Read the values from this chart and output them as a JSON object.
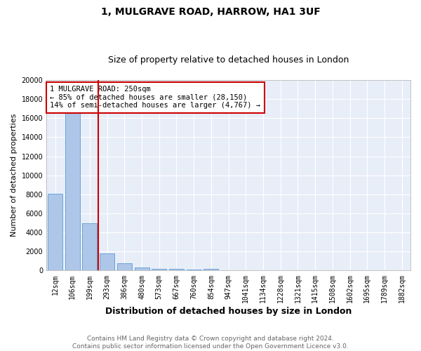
{
  "title1": "1, MULGRAVE ROAD, HARROW, HA1 3UF",
  "title2": "Size of property relative to detached houses in London",
  "xlabel": "Distribution of detached houses by size in London",
  "ylabel": "Number of detached properties",
  "categories": [
    "12sqm",
    "106sqm",
    "199sqm",
    "293sqm",
    "386sqm",
    "480sqm",
    "573sqm",
    "667sqm",
    "760sqm",
    "854sqm",
    "947sqm",
    "1041sqm",
    "1134sqm",
    "1228sqm",
    "1321sqm",
    "1415sqm",
    "1508sqm",
    "1602sqm",
    "1695sqm",
    "1789sqm",
    "1882sqm"
  ],
  "values": [
    8050,
    16550,
    5000,
    1820,
    760,
    360,
    210,
    150,
    100,
    150,
    0,
    0,
    0,
    0,
    0,
    0,
    0,
    0,
    0,
    0,
    0
  ],
  "bar_color": "#aec6e8",
  "bar_edge_color": "#5b9bd5",
  "red_line_x": 2.5,
  "annotation_line1": "1 MULGRAVE ROAD: 250sqm",
  "annotation_line2": "← 85% of detached houses are smaller (28,150)",
  "annotation_line3": "14% of semi-detached houses are larger (4,767) →",
  "annotation_box_color": "#ffffff",
  "annotation_box_edge": "#cc0000",
  "ylim": [
    0,
    20000
  ],
  "yticks": [
    0,
    2000,
    4000,
    6000,
    8000,
    10000,
    12000,
    14000,
    16000,
    18000,
    20000
  ],
  "footer_line1": "Contains HM Land Registry data © Crown copyright and database right 2024.",
  "footer_line2": "Contains public sector information licensed under the Open Government Licence v3.0.",
  "fig_background_color": "#ffffff",
  "plot_background_color": "#e8eef8",
  "grid_color": "#ffffff",
  "title1_fontsize": 10,
  "title2_fontsize": 9,
  "xlabel_fontsize": 9,
  "ylabel_fontsize": 8,
  "tick_fontsize": 7,
  "annotation_fontsize": 7.5,
  "footer_fontsize": 6.5
}
